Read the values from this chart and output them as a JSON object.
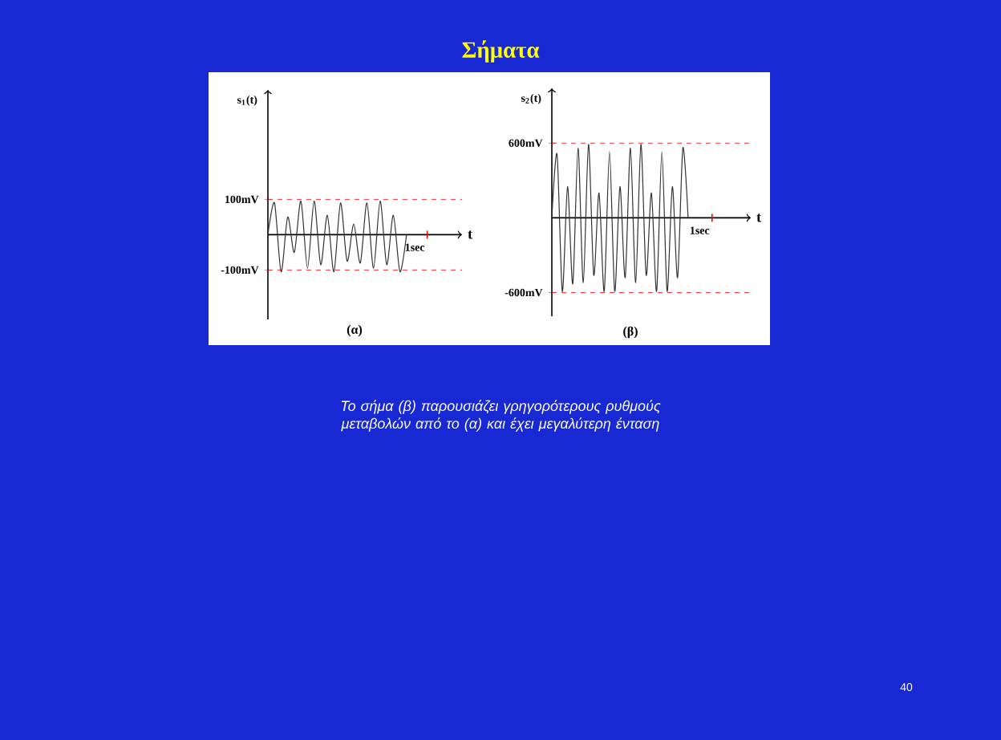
{
  "chart_data": [
    {
      "type": "line",
      "xlabel": "t",
      "ylabel": "s$_{1}$(t)",
      "categories": [
        null,
        null,
        null,
        null,
        null,
        null,
        null,
        null,
        null,
        null,
        null,
        null,
        null,
        null,
        null,
        null,
        null,
        null,
        null,
        null,
        null,
        null
      ],
      "values": [
        0,
        90,
        -105,
        50,
        -50,
        95,
        -95,
        95,
        -85,
        55,
        -105,
        90,
        -75,
        30,
        -80,
        90,
        -95,
        95,
        -85,
        55,
        -105,
        0
      ],
      "color": "#333333",
      "ylim": [
        -240,
        410
      ],
      "yticks": [
        {
          "value": -100,
          "label": "-100mV"
        },
        {
          "value": 100,
          "label": "100mV"
        }
      ],
      "ref_lines": [
        {
          "axis": "y",
          "value": 100,
          "color": "#ff0000",
          "line_style": "dashed"
        },
        {
          "axis": "y",
          "value": -100,
          "color": "#ff0000",
          "line_style": "dashed"
        }
      ],
      "annotations": [
        "(α)",
        "1sec"
      ]
    },
    {
      "type": "line",
      "xlabel": "t",
      "ylabel": "s$_{2}$(t)",
      "categories": [
        null,
        null,
        null,
        null,
        null,
        null,
        null,
        null,
        null,
        null,
        null,
        null,
        null,
        null,
        null,
        null,
        null,
        null,
        null,
        null,
        null,
        null,
        null,
        null,
        null,
        null,
        null
      ],
      "values": [
        0,
        510,
        -590,
        250,
        -530,
        560,
        -520,
        590,
        -460,
        200,
        -590,
        530,
        -590,
        250,
        -480,
        560,
        -520,
        590,
        -460,
        200,
        -590,
        530,
        -590,
        250,
        -480,
        560,
        0
      ],
      "color": "#333333",
      "ylim": [
        -790,
        1040
      ],
      "yticks": [
        {
          "value": -600,
          "label": "-600mV"
        },
        {
          "value": 600,
          "label": "600mV"
        }
      ],
      "ref_lines": [
        {
          "axis": "y",
          "value": 600,
          "color": "#ff0000",
          "line_style": "dashed"
        },
        {
          "axis": "y",
          "value": -600,
          "color": "#ff0000",
          "line_style": "dashed"
        }
      ],
      "annotations": [
        "(β)",
        "1sec"
      ]
    },
    {
      "type": "other",
      "title": "Σήματα",
      "annotations": [
        "Το σήμα (β) παρουσιάζει γρηγορότερους ρυθμούς μεταβολών από το (α) και έχει μεγαλύτερη ένταση",
        "40"
      ]
    }
  ]
}
